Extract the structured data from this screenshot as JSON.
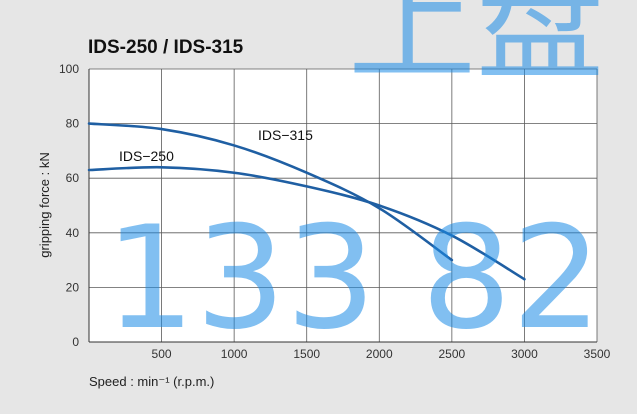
{
  "chart_data": {
    "type": "line",
    "title": "IDS-250 / IDS-315",
    "xlabel": "Speed : min⁻¹ (r.p.m.)",
    "ylabel": "gripping force : kN",
    "xlim": [
      0,
      3500
    ],
    "ylim": [
      0,
      100
    ],
    "x_ticks": [
      "500",
      "1000",
      "1500",
      "2000",
      "2500",
      "3000",
      "3500"
    ],
    "y_ticks": [
      "0",
      "20",
      "40",
      "60",
      "80",
      "100"
    ],
    "grid": true,
    "series": [
      {
        "name": "IDS−315",
        "x": [
          0,
          500,
          1000,
          1500,
          2000,
          2500
        ],
        "y": [
          80,
          78,
          72,
          62,
          49,
          30
        ]
      },
      {
        "name": "IDS−250",
        "x": [
          0,
          500,
          1000,
          1500,
          2000,
          2500,
          3000
        ],
        "y": [
          63,
          64,
          62,
          57,
          50,
          39,
          23
        ]
      }
    ],
    "colors": {
      "series": "#1f5fa3",
      "background": "#e6e6e6",
      "plot": "#ffffff"
    }
  },
  "watermark": {
    "top_text": "上盘",
    "number_text": "133 82"
  }
}
